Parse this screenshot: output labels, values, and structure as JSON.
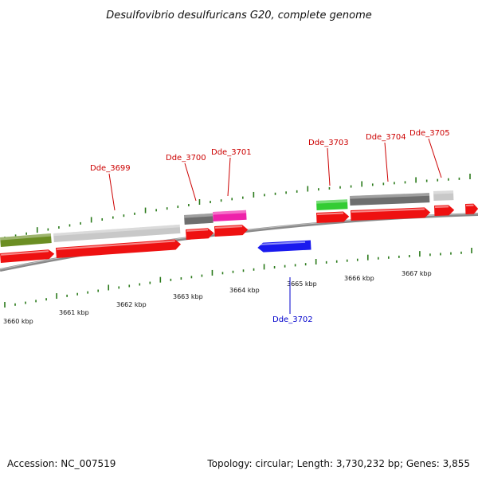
{
  "title": "Desulfovibrio desulfuricans G20, complete genome",
  "footer": {
    "accession": "Accession: NC_007519",
    "summary": "Topology: circular; Length: 3,730,232 bp; Genes: 3,855"
  },
  "colors": {
    "backbone": "#8a8a8a",
    "tick": "#2a7a1a",
    "forward_label": "#cc0000",
    "reverse_label": "#0000cc",
    "cds_red": "#ee1111",
    "blue": "#1a1aee",
    "olive": "#6b8e23",
    "light_gray": "#c8c8c8",
    "dark_gray": "#6e6e6e",
    "magenta": "#ee22aa",
    "green": "#33cc33"
  },
  "chart_data": {
    "type": "genome-map",
    "unit": "kbp",
    "tick_labels": [
      "3660 kbp",
      "3661 kbp",
      "3662 kbp",
      "3663 kbp",
      "3664 kbp",
      "3665 kbp",
      "3666 kbp",
      "3667 kbp"
    ],
    "genes": [
      {
        "label": "Dde_3699",
        "strand": "+",
        "color": "red"
      },
      {
        "label": "Dde_3700",
        "strand": "+",
        "color": "red"
      },
      {
        "label": "Dde_3701",
        "strand": "+",
        "color": "red"
      },
      {
        "label": "Dde_3702",
        "strand": "-",
        "color": "blue"
      },
      {
        "label": "Dde_3703",
        "strand": "+",
        "color": "red"
      },
      {
        "label": "Dde_3704",
        "strand": "+",
        "color": "red"
      },
      {
        "label": "Dde_3705",
        "strand": "+",
        "color": "red"
      }
    ]
  }
}
